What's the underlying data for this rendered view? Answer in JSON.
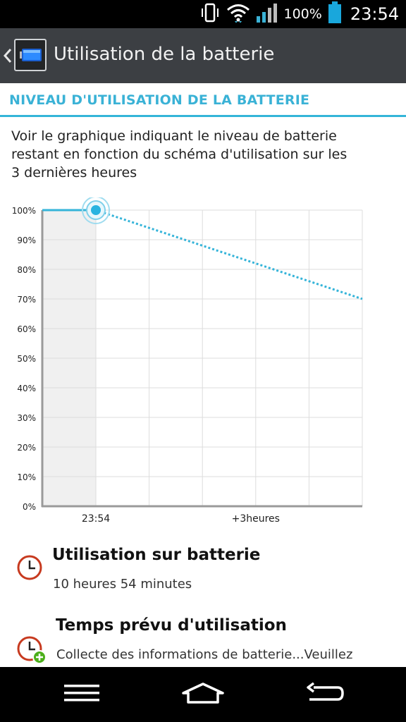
{
  "status_bar": {
    "battery_percent": "100%",
    "time": "23:54"
  },
  "action_bar": {
    "title": "Utilisation de la batterie"
  },
  "section": {
    "header": "NIVEAU D'UTILISATION DE LA BATTERIE"
  },
  "description": {
    "lines": [
      "Voir le graphique indiquant le niveau de batterie",
      "restant en fonction du schéma d'utilisation sur les",
      "3 dernières heures"
    ]
  },
  "chart_data": {
    "type": "line",
    "y_ticks": [
      "100%",
      "90%",
      "80%",
      "70%",
      "60%",
      "50%",
      "40%",
      "30%",
      "20%",
      "10%",
      "0%"
    ],
    "x_labels": [
      "23:54",
      "+3heures"
    ],
    "ylim": [
      0,
      100
    ],
    "series": [
      {
        "values": [
          100,
          100
        ],
        "x": [
          "past",
          "23:54"
        ]
      },
      {
        "values": [
          100,
          70
        ],
        "x": [
          "23:54",
          "+3heures"
        ]
      }
    ],
    "colors": {
      "line": "#35b4d9",
      "history_fill": "#f0f0f0",
      "grid": "#dddddd"
    }
  },
  "items": [
    {
      "title": "Utilisation sur batterie",
      "subtitle": "10 heures 54 minutes",
      "icon": "clock-icon"
    },
    {
      "title": "Temps prévu d'utilisation",
      "subtitle": "Collecte des informations de batterie...Veuillez",
      "icon": "clock-plus-icon"
    }
  ]
}
